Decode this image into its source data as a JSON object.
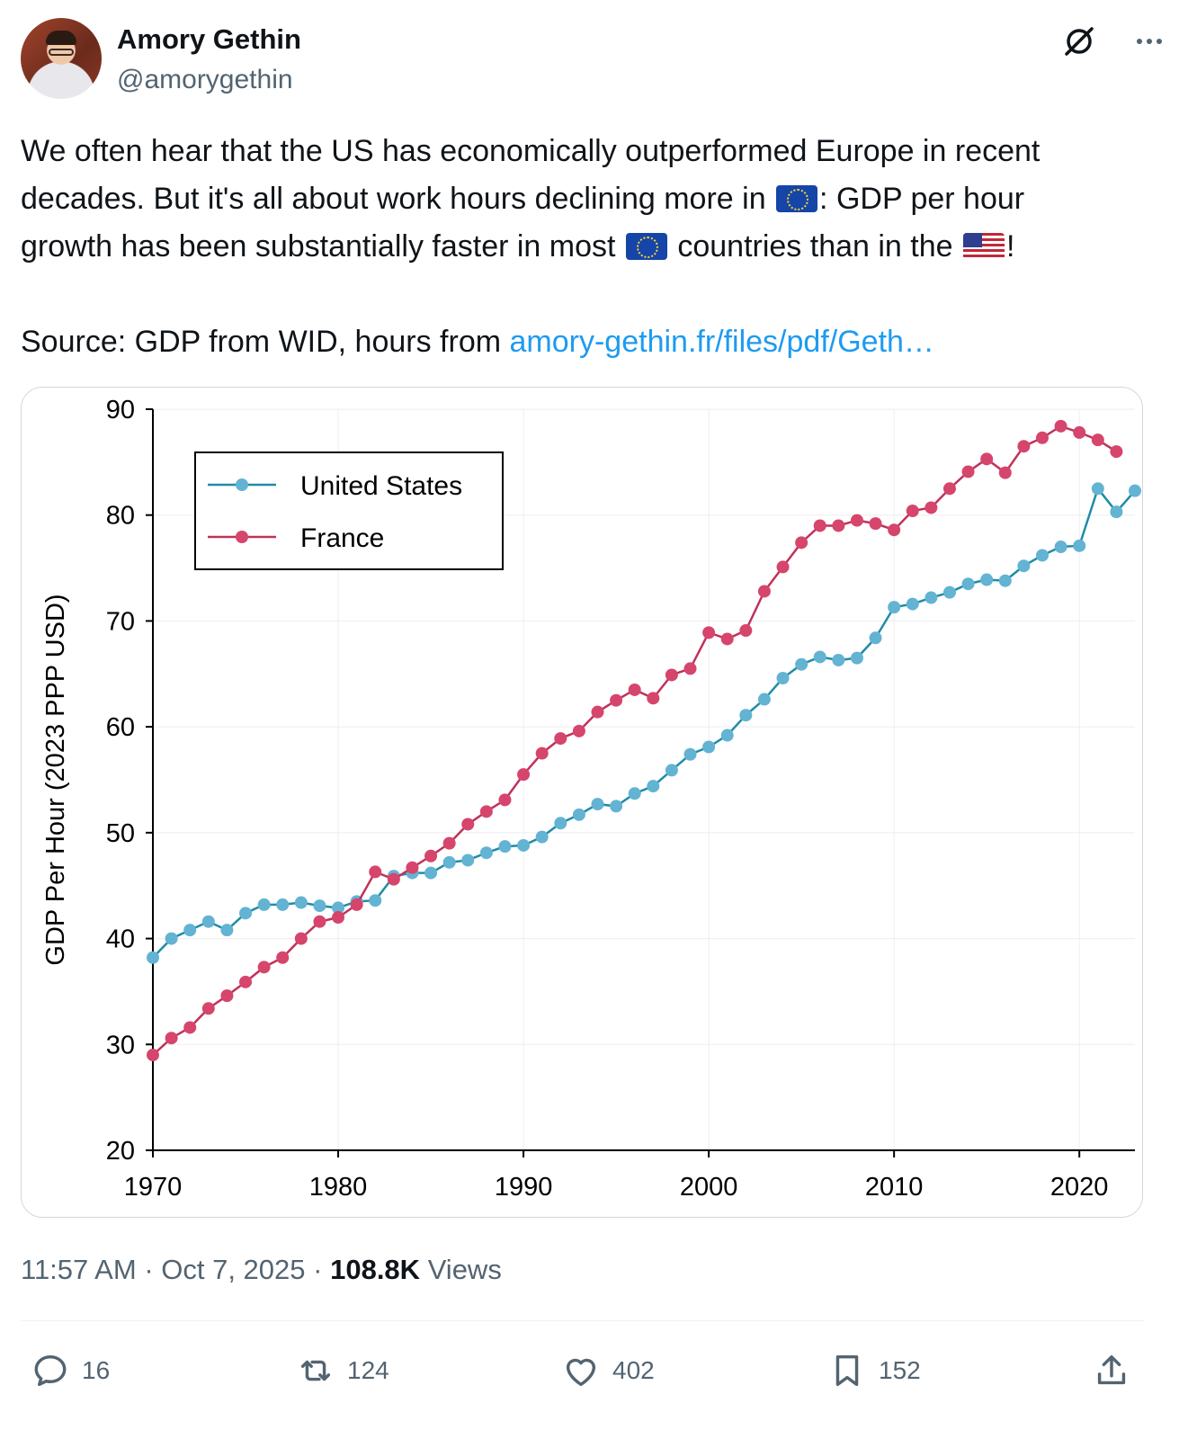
{
  "author": {
    "name": "Amory Gethin",
    "handle": "@amorygethin"
  },
  "tweet": {
    "line1": "We often hear that the US has economically outperformed Europe in recent",
    "line2a": "decades. But it's all about work hours declining more in ",
    "line2b": ": GDP per hour",
    "line3a": "growth has been substantially faster in most ",
    "line3b": " countries than in the ",
    "line3c": "!",
    "source_prefix": "Source: GDP from WID, hours from ",
    "source_link": "amory-gethin.fr/files/pdf/Geth…",
    "flag_eu": "EU flag",
    "flag_us": "US flag"
  },
  "meta": {
    "time": "11:57 AM",
    "date": "Oct 7, 2025",
    "views_count": "108.8K",
    "views_label": "Views"
  },
  "actions": {
    "replies": "16",
    "reposts": "124",
    "likes": "402",
    "bookmarks": "152"
  },
  "icons": {
    "grok": "grok-icon",
    "more": "more-icon",
    "reply": "reply-icon",
    "repost": "repost-icon",
    "like": "heart-icon",
    "bookmark": "bookmark-icon",
    "share": "share-icon"
  },
  "colors": {
    "us_line": "#1f8ca8",
    "us_marker": "#63b3d3",
    "fr_line": "#c0325a",
    "fr_marker": "#d6456c",
    "link": "#1d9bf0"
  },
  "chart_data": {
    "type": "line",
    "ylabel": "GDP Per Hour (2023 PPP USD)",
    "xlabel": "",
    "ylim": [
      20,
      90
    ],
    "xlim": [
      1970,
      2023
    ],
    "yticks": [
      20,
      30,
      40,
      50,
      60,
      70,
      80,
      90
    ],
    "xticks": [
      1970,
      1980,
      1990,
      2000,
      2010,
      2020
    ],
    "grid": true,
    "legend_position": "top-left",
    "x": [
      1970,
      1971,
      1972,
      1973,
      1974,
      1975,
      1976,
      1977,
      1978,
      1979,
      1980,
      1981,
      1982,
      1983,
      1984,
      1985,
      1986,
      1987,
      1988,
      1989,
      1990,
      1991,
      1992,
      1993,
      1994,
      1995,
      1996,
      1997,
      1998,
      1999,
      2000,
      2001,
      2002,
      2003,
      2004,
      2005,
      2006,
      2007,
      2008,
      2009,
      2010,
      2011,
      2012,
      2013,
      2014,
      2015,
      2016,
      2017,
      2018,
      2019,
      2020,
      2021,
      2022,
      2023
    ],
    "series": [
      {
        "name": "United States",
        "values": [
          38.2,
          40.0,
          40.8,
          41.6,
          40.8,
          42.4,
          43.2,
          43.2,
          43.4,
          43.1,
          42.9,
          43.5,
          43.6,
          45.9,
          46.2,
          46.2,
          47.2,
          47.4,
          48.1,
          48.7,
          48.8,
          49.6,
          50.9,
          51.7,
          52.7,
          52.5,
          53.7,
          54.4,
          55.9,
          57.4,
          58.1,
          59.2,
          61.1,
          62.6,
          64.6,
          65.9,
          66.6,
          66.3,
          66.5,
          68.4,
          71.3,
          71.6,
          72.2,
          72.7,
          73.5,
          73.9,
          73.8,
          75.2,
          76.2,
          77.0,
          77.1,
          82.5,
          80.3,
          82.3
        ]
      },
      {
        "name": "France",
        "values": [
          29.0,
          30.6,
          31.6,
          33.4,
          34.6,
          35.9,
          37.3,
          38.2,
          40.0,
          41.6,
          42.0,
          43.2,
          46.3,
          45.6,
          46.7,
          47.8,
          49.0,
          50.8,
          52.0,
          53.1,
          55.5,
          57.5,
          58.9,
          59.6,
          61.4,
          62.5,
          63.5,
          62.7,
          64.9,
          65.5,
          68.9,
          68.3,
          69.1,
          72.8,
          75.1,
          77.4,
          79.0,
          79.0,
          79.5,
          79.2,
          78.6,
          80.4,
          80.7,
          82.5,
          84.1,
          85.3,
          84.0,
          86.5,
          87.3,
          88.4,
          87.8,
          87.1,
          86.0,
          null
        ]
      }
    ]
  }
}
